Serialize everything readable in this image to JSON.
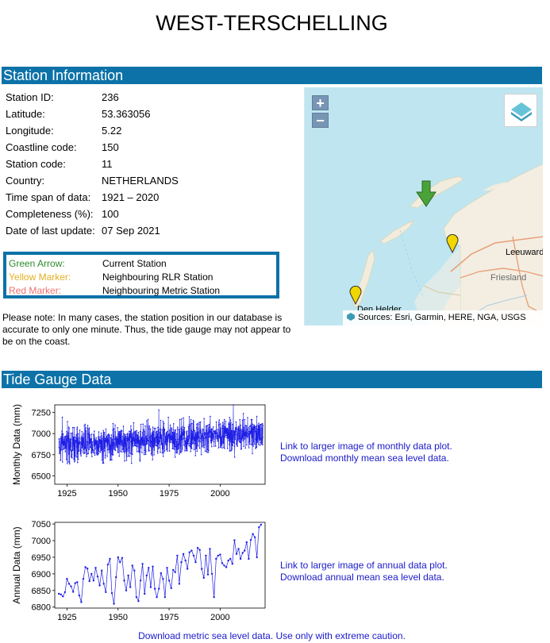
{
  "page": {
    "title": "WEST-TERSCHELLING"
  },
  "station_section": {
    "heading": "Station Information"
  },
  "station": {
    "rows": [
      {
        "label": "Station ID:",
        "value": "236"
      },
      {
        "label": "Latitude:",
        "value": "53.363056"
      },
      {
        "label": "Longitude:",
        "value": "5.22"
      },
      {
        "label": "Coastline code:",
        "value": "150"
      },
      {
        "label": "Station code:",
        "value": "11"
      },
      {
        "label": "Country:",
        "value": "NETHERLANDS"
      },
      {
        "label": "Time span of data:",
        "value": "1921 – 2020"
      },
      {
        "label": "Completeness (%):",
        "value": "100"
      },
      {
        "label": "Date of last update:",
        "value": "07 Sep 2021"
      }
    ]
  },
  "legend": {
    "items": [
      {
        "key": "Green Arrow:",
        "desc": "Current Station",
        "color": "#2e8b2e"
      },
      {
        "key": "Yellow Marker:",
        "desc": "Neighbouring RLR Station",
        "color": "#e0b020"
      },
      {
        "key": "Red Marker:",
        "desc": "Neighbouring Metric Station",
        "color": "#f07070"
      }
    ]
  },
  "note": {
    "text": "Please note: In many cases, the station position in our database is accurate to only one minute. Thus, the tide gauge may not appear to be on the coast."
  },
  "map": {
    "zoom_in": "+",
    "zoom_out": "−",
    "attribution": "Sources: Esri, Garmin, HERE, NGA, USGS",
    "places": [
      "Leeuwarden",
      "Friesland",
      "Den Helder"
    ],
    "icons": [
      "layers-icon",
      "green-arrow-marker",
      "yellow-marker"
    ],
    "colors": {
      "water": "#bfe6f0",
      "land": "#f4eee2",
      "arrow": "#3f9a2f",
      "marker": "#f2d600"
    }
  },
  "tide_section": {
    "heading": "Tide Gauge Data"
  },
  "monthly": {
    "link_plot": "Link to larger image of monthly data plot.",
    "link_data": "Download monthly mean sea level data."
  },
  "annual": {
    "link_plot": "Link to larger image of annual data plot.",
    "link_data": "Download annual mean sea level data."
  },
  "footer": {
    "metric_link": "Download metric sea level data. Use only with extreme caution."
  },
  "chart_data": [
    {
      "type": "line",
      "ylabel": "Monthly Data (mm)",
      "xlabel": "",
      "xlim": [
        1919,
        2022
      ],
      "ylim": [
        6400,
        7340
      ],
      "xticks": [
        1925,
        1950,
        1975,
        2000
      ],
      "yticks": [
        6500,
        6750,
        7000,
        7250
      ],
      "color": "#1f1fe6",
      "series": [
        {
          "start": 1921,
          "end": 2020,
          "trend": [
            6860,
            6995
          ],
          "noise_range": [
            6440,
            7340
          ],
          "values": []
        }
      ]
    },
    {
      "type": "line",
      "ylabel": "Annual Data (mm)",
      "xlabel": "",
      "xlim": [
        1919,
        2022
      ],
      "ylim": [
        6797,
        7055
      ],
      "xticks": [
        1925,
        1950,
        1975,
        2000
      ],
      "yticks": [
        6800,
        6850,
        6900,
        6950,
        7000,
        7050
      ],
      "color": "#1f1fe6",
      "x": [
        1921,
        1922,
        1923,
        1924,
        1925,
        1926,
        1927,
        1928,
        1929,
        1930,
        1931,
        1932,
        1933,
        1934,
        1935,
        1936,
        1937,
        1938,
        1939,
        1940,
        1941,
        1942,
        1943,
        1944,
        1945,
        1946,
        1947,
        1948,
        1949,
        1950,
        1951,
        1952,
        1953,
        1954,
        1955,
        1956,
        1957,
        1958,
        1959,
        1960,
        1961,
        1962,
        1963,
        1964,
        1965,
        1966,
        1967,
        1968,
        1969,
        1970,
        1971,
        1972,
        1973,
        1974,
        1975,
        1976,
        1977,
        1978,
        1979,
        1980,
        1981,
        1982,
        1983,
        1984,
        1985,
        1986,
        1987,
        1988,
        1989,
        1990,
        1991,
        1992,
        1993,
        1994,
        1995,
        1996,
        1997,
        1998,
        1999,
        2000,
        2001,
        2002,
        2003,
        2004,
        2005,
        2006,
        2007,
        2008,
        2009,
        2010,
        2011,
        2012,
        2013,
        2014,
        2015,
        2016,
        2017,
        2018,
        2019,
        2020
      ],
      "values": [
        6840,
        6838,
        6832,
        6845,
        6885,
        6870,
        6862,
        6846,
        6872,
        6875,
        6835,
        6815,
        6885,
        6920,
        6916,
        6878,
        6900,
        6880,
        6918,
        6892,
        6865,
        6910,
        6870,
        6845,
        6928,
        6945,
        6842,
        6810,
        6890,
        6950,
        6935,
        6948,
        6880,
        6850,
        6895,
        6860,
        6925,
        6910,
        6830,
        6818,
        6880,
        6930,
        6840,
        6895,
        6918,
        6860,
        6922,
        6855,
        6830,
        6855,
        6902,
        6885,
        6830,
        6918,
        6880,
        6857,
        6912,
        6905,
        6955,
        6870,
        6935,
        6960,
        6940,
        6915,
        6965,
        6970,
        6955,
        6935,
        6978,
        6972,
        6915,
        6888,
        6955,
        6898,
        6975,
        6900,
        6830,
        6945,
        6955,
        6958,
        6932,
        6925,
        6920,
        6940,
        6945,
        6930,
        7001,
        6960,
        6975,
        6945,
        6963,
        6970,
        6995,
        6945,
        7002,
        7020,
        7010,
        6950,
        7040,
        7048
      ],
      "series": []
    }
  ]
}
